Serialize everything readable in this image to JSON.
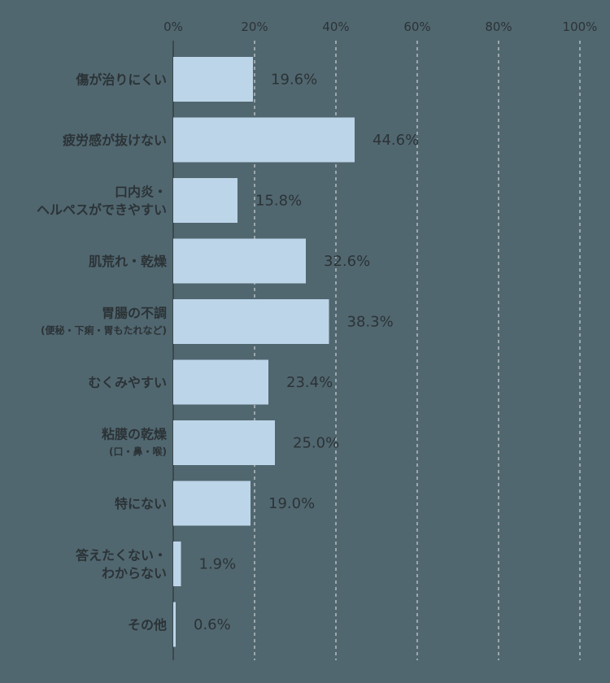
{
  "chart_data": {
    "type": "bar",
    "orientation": "horizontal",
    "xlim": [
      0,
      100
    ],
    "xticks": [
      "0%",
      "20%",
      "40%",
      "60%",
      "80%",
      "100%"
    ],
    "grid": "vertical dashed",
    "bar_color": "#bdd5e8",
    "background_color": "#516770",
    "text_color": "#2b3336",
    "categories": [
      {
        "lines": [
          "傷が治りにくい"
        ],
        "value": 19.6,
        "label": "19.6%"
      },
      {
        "lines": [
          "疲労感が抜けない"
        ],
        "value": 44.6,
        "label": "44.6%"
      },
      {
        "lines": [
          "口内炎・",
          "ヘルペスができやすい"
        ],
        "value": 15.8,
        "label": "15.8%"
      },
      {
        "lines": [
          "肌荒れ・乾燥"
        ],
        "value": 32.6,
        "label": "32.6%"
      },
      {
        "lines": [
          "胃腸の不調"
        ],
        "sub": "(便秘・下痢・胃もたれなど)",
        "value": 38.3,
        "label": "38.3%"
      },
      {
        "lines": [
          "むくみやすい"
        ],
        "value": 23.4,
        "label": "23.4%"
      },
      {
        "lines": [
          "粘膜の乾燥"
        ],
        "sub": "(口・鼻・喉)",
        "value": 25.0,
        "label": "25.0%"
      },
      {
        "lines": [
          "特にない"
        ],
        "value": 19.0,
        "label": "19.0%"
      },
      {
        "lines": [
          "答えたくない・",
          "わからない"
        ],
        "value": 1.9,
        "label": "1.9%"
      },
      {
        "lines": [
          "その他"
        ],
        "value": 0.6,
        "label": "0.6%"
      }
    ]
  }
}
